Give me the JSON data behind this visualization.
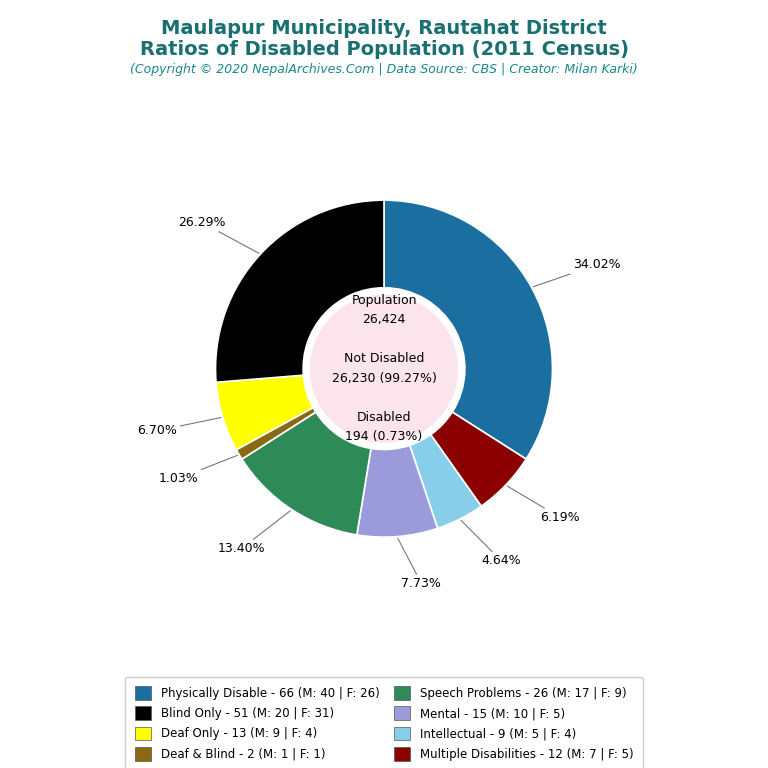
{
  "title_line1": "Maulapur Municipality, Rautahat District",
  "title_line2": "Ratios of Disabled Population (2011 Census)",
  "subtitle": "(Copyright © 2020 NepalArchives.Com | Data Source: CBS | Creator: Milan Karki)",
  "title_color": "#1a7070",
  "subtitle_color": "#1a8888",
  "center_bg": "#fce4ec",
  "slices": [
    {
      "label": "Physically Disable - 66 (M: 40 | F: 26)",
      "value": 66,
      "pct_label": "34.02%",
      "color": "#1a6fa0"
    },
    {
      "label": "Multiple Disabilities - 12 (M: 7 | F: 5)",
      "value": 12,
      "pct_label": "6.19%",
      "color": "#8b0000"
    },
    {
      "label": "Intellectual - 9 (M: 5 | F: 4)",
      "value": 9,
      "pct_label": "4.64%",
      "color": "#87ceeb"
    },
    {
      "label": "Mental - 15 (M: 10 | F: 5)",
      "value": 15,
      "pct_label": "7.73%",
      "color": "#9b9bdb"
    },
    {
      "label": "Speech Problems - 26 (M: 17 | F: 9)",
      "value": 26,
      "pct_label": "13.40%",
      "color": "#2e8b57"
    },
    {
      "label": "Deaf & Blind - 2 (M: 1 | F: 1)",
      "value": 2,
      "pct_label": "1.03%",
      "color": "#8b6914"
    },
    {
      "label": "Deaf Only - 13 (M: 9 | F: 4)",
      "value": 13,
      "pct_label": "6.70%",
      "color": "#ffff00"
    },
    {
      "label": "Blind Only - 51 (M: 20 | F: 31)",
      "value": 51,
      "pct_label": "26.29%",
      "color": "#000000"
    }
  ],
  "legend_col1": [
    0,
    6,
    4,
    2
  ],
  "legend_col2": [
    7,
    5,
    3,
    1
  ],
  "background_color": "#ffffff"
}
